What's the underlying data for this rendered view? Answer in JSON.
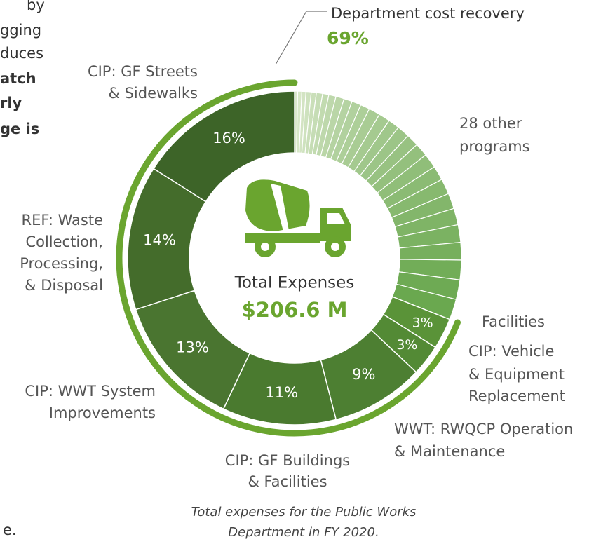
{
  "chart_data": {
    "type": "donut",
    "center_title": "Total Expenses",
    "center_total": "$206.6 M",
    "caption": [
      "Total expenses for the Public Works",
      "Department in FY 2020."
    ],
    "other": {
      "label": [
        "28 other",
        "programs"
      ],
      "values": [
        0.3,
        0.4,
        0.4,
        0.5,
        0.5,
        0.6,
        0.6,
        0.7,
        0.8,
        0.8,
        0.9,
        0.9,
        1.1,
        1.1,
        1.1,
        1.2,
        1.2,
        1.3,
        1.4,
        1.4,
        1.5,
        1.5,
        1.6,
        1.7,
        1.7,
        1.9,
        1.9,
        2.0
      ],
      "color_range": [
        "#dbe9cc",
        "#6aa84f"
      ]
    },
    "categories": [
      [
        "Facilities"
      ],
      [
        "CIP: Vehicle",
        "& Equipment",
        "Replacement"
      ],
      [
        "WWT: RWQCP Operation",
        "& Maintenance"
      ],
      [
        "CIP: GF Buildings",
        "& Facilities"
      ],
      [
        "CIP: WWT System",
        "Improvements"
      ],
      [
        "REF: Waste",
        "Collection,",
        "Processing,",
        "& Disposal"
      ],
      [
        "CIP: GF Streets",
        "& Sidewalks"
      ]
    ],
    "values": [
      3,
      3,
      9,
      11,
      13,
      14,
      16
    ],
    "value_labels": [
      "3%",
      "3%",
      "9%",
      "11%",
      "13%",
      "14%",
      "16%"
    ],
    "colors": [
      "#5a9338",
      "#538a35",
      "#4d7f32",
      "#4a7a2f",
      "#4a7530",
      "#446c2b",
      "#3d6428"
    ],
    "recovery": {
      "label": "Department cost recovery",
      "value": 69,
      "value_label": "69%",
      "color": "#6aa52f"
    },
    "side_text": [
      {
        "text": "by",
        "bold": false
      },
      {
        "text": "gging",
        "bold": false
      },
      {
        "text": "duces",
        "bold": false
      },
      {
        "text": "atch",
        "bold": true
      },
      {
        "text": "rly",
        "bold": true
      },
      {
        "text": "ge is",
        "bold": true
      },
      {
        "text": "e.",
        "bold": false
      }
    ]
  }
}
